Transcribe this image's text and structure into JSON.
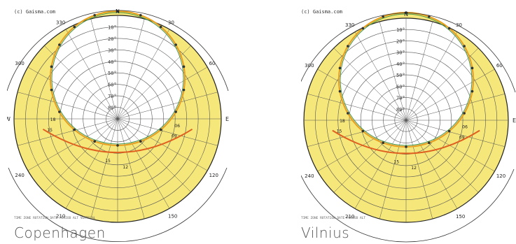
{
  "panels": [
    {
      "credit": "(c) Gaisma.com",
      "city": "Copenhagen",
      "footer": "TIME ZONE ROTATION DATE PERIOD ALT VERTICAL",
      "compass": {
        "n": "N",
        "e": "E",
        "w": "W"
      },
      "azimuth_labels": [
        "330",
        "30",
        "300",
        "60",
        "240",
        "120",
        "210",
        "150"
      ],
      "hour_labels": [
        "04:05",
        "20:58",
        "18",
        "15",
        "37",
        "09",
        "12",
        "07",
        "15",
        "15",
        "09",
        "15",
        "16:01",
        "08:07",
        "12"
      ],
      "inner_hours": [
        "18",
        "15",
        "06",
        "09",
        "15",
        "12"
      ]
    },
    {
      "credit": "(c) Gaisma.com",
      "city": "Vilnius",
      "footer": "TIME ZONE ROTATION DATE PERIOD ALT",
      "compass": {
        "n": "N",
        "e": "E",
        "w": "W"
      },
      "azimuth_labels": [
        "330",
        "30",
        "300",
        "60",
        "240",
        "120",
        "210",
        "150"
      ],
      "hour_labels": [
        "04:42",
        "21:00",
        "18",
        "252",
        "18",
        "15",
        "06",
        "09",
        "15",
        "12",
        "15",
        "18",
        "08:00",
        "12"
      ],
      "inner_hours": [
        "18",
        "15",
        "06",
        "09",
        "15",
        "12"
      ]
    }
  ],
  "altitude_rings": [
    "10°",
    "20°",
    "30°",
    "40°",
    "50°",
    "60°",
    "70°",
    "80°"
  ],
  "colors": {
    "fill": "#f5e77a",
    "grid": "#555555",
    "summer_path": "#e8a020",
    "winter_path": "#e06020",
    "dot": "#333333"
  }
}
